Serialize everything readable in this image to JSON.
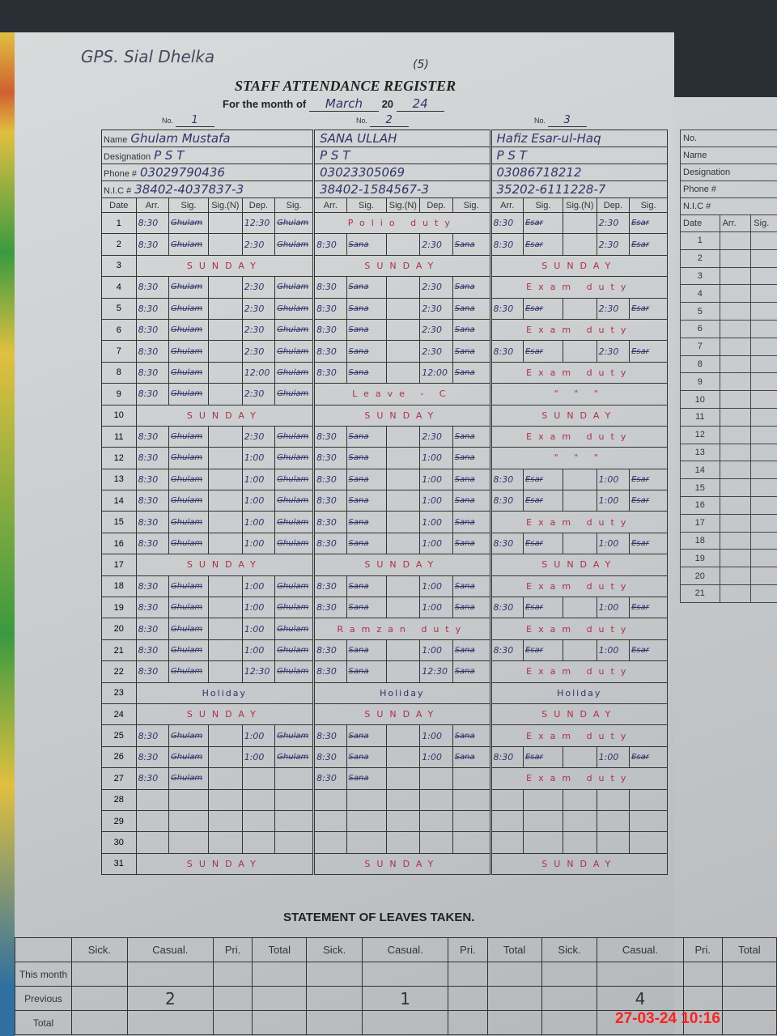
{
  "school": "GPS. Sial Dhelka",
  "page_number": "(5)",
  "title": "STAFF ATTENDANCE REGISTER",
  "month_label": "For the month of",
  "month": "March",
  "year_prefix": "20",
  "year": "24",
  "no_label": "No.",
  "labels": {
    "name": "Name",
    "designation": "Designation",
    "phone": "Phone #",
    "nic": "N.I.C #",
    "date": "Date",
    "arr": "Arr.",
    "sig": "Sig.",
    "sign": "Sig.(N)",
    "dep": "Dep."
  },
  "staff": [
    {
      "no": "1",
      "name": "Ghulam Mustafa",
      "designation": "P S T",
      "phone": "03029790436",
      "nic": "38402-4037837-3",
      "sig": "Ghulam"
    },
    {
      "no": "2",
      "name": "SANA ULLAH",
      "designation": "P S T",
      "phone": "03023305069",
      "nic": "38402-1584567-3",
      "sig": "Sana"
    },
    {
      "no": "3",
      "name": "Hafiz Esar-ul-Haq",
      "designation": "P S T",
      "phone": "03086718212",
      "nic": "35202-6111228-7",
      "sig": "Esar"
    }
  ],
  "rows": [
    {
      "date": "1",
      "s": [
        [
          "8:30",
          "12:30"
        ],
        {
          "note": "Polio duty"
        },
        [
          "8:30",
          "2:30"
        ]
      ]
    },
    {
      "date": "2",
      "s": [
        [
          "8:30",
          "2:30"
        ],
        [
          "8:30",
          "2:30"
        ],
        [
          "8:30",
          "2:30"
        ]
      ]
    },
    {
      "date": "3",
      "s": [
        {
          "note": "SUNDAY"
        },
        {
          "note": "SUNDAY"
        },
        {
          "note": "SUNDAY"
        }
      ]
    },
    {
      "date": "4",
      "s": [
        [
          "8:30",
          "2:30"
        ],
        [
          "8:30",
          "2:30"
        ],
        {
          "note": "Exam duty"
        }
      ]
    },
    {
      "date": "5",
      "s": [
        [
          "8:30",
          "2:30"
        ],
        [
          "8:30",
          "2:30"
        ],
        [
          "8:30",
          "2:30"
        ]
      ]
    },
    {
      "date": "6",
      "s": [
        [
          "8:30",
          "2:30"
        ],
        [
          "8:30",
          "2:30"
        ],
        {
          "note": "Exam duty"
        }
      ]
    },
    {
      "date": "7",
      "s": [
        [
          "8:30",
          "2:30"
        ],
        [
          "8:30",
          "2:30"
        ],
        [
          "8:30",
          "2:30"
        ]
      ]
    },
    {
      "date": "8",
      "s": [
        [
          "8:30",
          "12:00"
        ],
        [
          "8:30",
          "12:00"
        ],
        {
          "note": "Exam duty"
        }
      ]
    },
    {
      "date": "9",
      "s": [
        [
          "8:30",
          "2:30"
        ],
        {
          "note": "Leave - C"
        },
        {
          "note": "\"   \"   \""
        }
      ]
    },
    {
      "date": "10",
      "s": [
        {
          "note": "SUNDAY"
        },
        {
          "note": "SUNDAY"
        },
        {
          "note": "SUNDAY"
        }
      ]
    },
    {
      "date": "11",
      "s": [
        [
          "8:30",
          "2:30"
        ],
        [
          "8:30",
          "2:30"
        ],
        {
          "note": "Exam duty"
        }
      ]
    },
    {
      "date": "12",
      "s": [
        [
          "8:30",
          "1:00"
        ],
        [
          "8:30",
          "1:00"
        ],
        {
          "note": "\"   \"   \""
        }
      ]
    },
    {
      "date": "13",
      "s": [
        [
          "8:30",
          "1:00"
        ],
        [
          "8:30",
          "1:00"
        ],
        [
          "8:30",
          "1:00"
        ]
      ]
    },
    {
      "date": "14",
      "s": [
        [
          "8:30",
          "1:00"
        ],
        [
          "8:30",
          "1:00"
        ],
        [
          "8:30",
          "1:00"
        ]
      ]
    },
    {
      "date": "15",
      "s": [
        [
          "8:30",
          "1:00"
        ],
        [
          "8:30",
          "1:00"
        ],
        {
          "note": "Exam duty"
        }
      ]
    },
    {
      "date": "16",
      "s": [
        [
          "8:30",
          "1:00"
        ],
        [
          "8:30",
          "1:00"
        ],
        [
          "8:30",
          "1:00"
        ]
      ]
    },
    {
      "date": "17",
      "s": [
        {
          "note": "SUNDAY"
        },
        {
          "note": "SUNDAY"
        },
        {
          "note": "SUNDAY"
        }
      ]
    },
    {
      "date": "18",
      "s": [
        [
          "8:30",
          "1:00"
        ],
        [
          "8:30",
          "1:00"
        ],
        {
          "note": "Exam duty"
        }
      ]
    },
    {
      "date": "19",
      "s": [
        [
          "8:30",
          "1:00"
        ],
        [
          "8:30",
          "1:00"
        ],
        [
          "8:30",
          "1:00"
        ]
      ]
    },
    {
      "date": "20",
      "s": [
        [
          "8:30",
          "1:00"
        ],
        {
          "note": "Ramzan duty"
        },
        {
          "note": "Exam duty"
        }
      ]
    },
    {
      "date": "21",
      "s": [
        [
          "8:30",
          "1:00"
        ],
        [
          "8:30",
          "1:00"
        ],
        [
          "8:30",
          "1:00"
        ]
      ]
    },
    {
      "date": "22",
      "s": [
        [
          "8:30",
          "12:30"
        ],
        [
          "8:30",
          "12:30"
        ],
        {
          "note": "Exam duty"
        }
      ]
    },
    {
      "date": "23",
      "s": [
        {
          "note": "Holiday"
        },
        {
          "note": "Holiday"
        },
        {
          "note": "Holiday"
        }
      ]
    },
    {
      "date": "24",
      "s": [
        {
          "note": "SUNDAY"
        },
        {
          "note": "SUNDAY"
        },
        {
          "note": "SUNDAY"
        }
      ]
    },
    {
      "date": "25",
      "s": [
        [
          "8:30",
          "1:00"
        ],
        [
          "8:30",
          "1:00"
        ],
        {
          "note": "Exam duty"
        }
      ]
    },
    {
      "date": "26",
      "s": [
        [
          "8:30",
          "1:00"
        ],
        [
          "8:30",
          "1:00"
        ],
        [
          "8:30",
          "1:00"
        ]
      ]
    },
    {
      "date": "27",
      "s": [
        [
          "8:30",
          ""
        ],
        [
          "8:30",
          ""
        ],
        {
          "note": "Exam duty"
        }
      ]
    },
    {
      "date": "28",
      "s": [
        [],
        [],
        []
      ]
    },
    {
      "date": "29",
      "s": [
        [],
        [],
        []
      ]
    },
    {
      "date": "30",
      "s": [
        [],
        [],
        []
      ]
    },
    {
      "date": "31",
      "s": [
        {
          "note": "SUNDAY"
        },
        {
          "note": "SUNDAY"
        },
        {
          "note": "SUNDAY"
        }
      ]
    }
  ],
  "right_page": {
    "dates": [
      "1",
      "2",
      "3",
      "4",
      "5",
      "6",
      "7",
      "8",
      "9",
      "10",
      "11",
      "12",
      "13",
      "14",
      "15",
      "16",
      "17",
      "18",
      "19",
      "20",
      "21"
    ]
  },
  "leaves": {
    "title": "STATEMENT OF LEAVES TAKEN.",
    "columns": [
      "Sick.",
      "Casual.",
      "Pri.",
      "Total"
    ],
    "row_labels": [
      "This month",
      "Previous",
      "Total"
    ],
    "values": [
      [
        [
          "",
          "",
          "",
          ""
        ],
        [
          "",
          "2",
          "",
          ""
        ],
        [
          "",
          "",
          "",
          ""
        ]
      ],
      [
        [
          "",
          "",
          "",
          ""
        ],
        [
          "",
          "1",
          "",
          ""
        ],
        [
          "",
          "",
          "",
          ""
        ]
      ],
      [
        [
          "",
          "",
          "",
          ""
        ],
        [
          "",
          "4",
          "",
          ""
        ],
        [
          "",
          "",
          "",
          ""
        ]
      ]
    ]
  },
  "timestamp": "27-03-24  10:16"
}
